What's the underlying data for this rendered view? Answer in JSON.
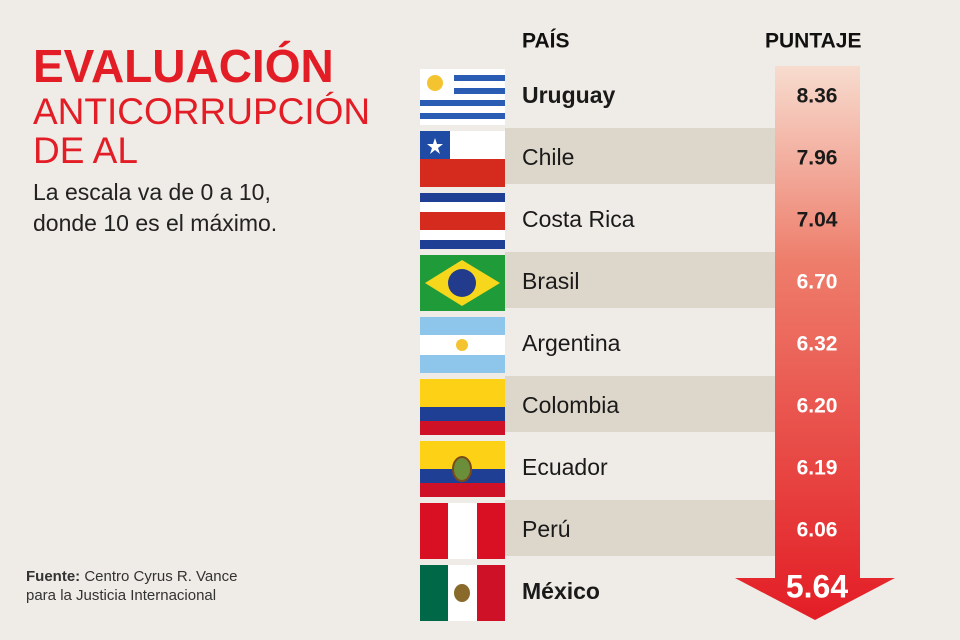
{
  "title": [
    "EVALUACIÓN",
    "ANTICORRUPCIÓN",
    "DE AL"
  ],
  "subtitle": [
    "La escala va de 0 a 10,",
    "donde 10 es el máximo."
  ],
  "table": {
    "headers": [
      "PAÍS",
      "PUNTAJE"
    ],
    "rows": [
      [
        "Uruguay",
        "8.36"
      ],
      [
        "Chile",
        "7.96"
      ],
      [
        "Costa Rica",
        "7.04"
      ],
      [
        "Brasil",
        "6.70"
      ],
      [
        "Argentina",
        "6.32"
      ],
      [
        "Colombia",
        "6.20"
      ],
      [
        "Ecuador",
        "6.19"
      ],
      [
        "Perú",
        "6.06"
      ],
      [
        "México",
        "5.64"
      ]
    ]
  },
  "source": {
    "label": "Fuente:",
    "text": [
      "Centro Cyrus R. Vance",
      "para la Justicia Internacional"
    ]
  }
}
